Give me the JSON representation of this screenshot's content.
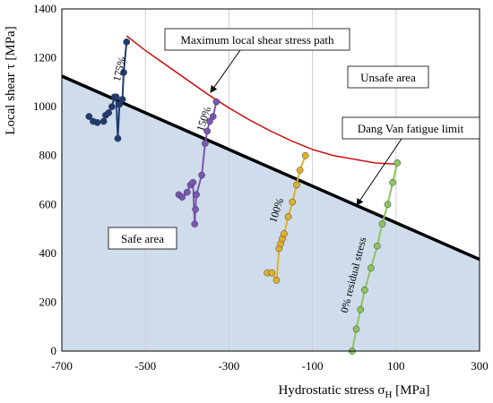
{
  "chart_data": {
    "type": "line",
    "title": "",
    "xlabel": "Hydrostatic stress σ",
    "xlabel_sub": "H",
    "xlabel_unit": " [MPa]",
    "ylabel": "Local shear τ [MPa]",
    "xlim": [
      -700,
      300
    ],
    "ylim": [
      0,
      1400
    ],
    "x_ticks": [
      -700,
      -500,
      -300,
      -100,
      100,
      300
    ],
    "x_tick_labels": [
      "-700",
      "-500",
      "-300",
      "-100",
      "100",
      "300"
    ],
    "y_ticks": [
      0,
      200,
      400,
      600,
      800,
      1000,
      1200,
      1400
    ],
    "y_tick_labels": [
      "0",
      "200",
      "400",
      "600",
      "800",
      "1000",
      "1200",
      "1400"
    ],
    "grid": "vertical",
    "fatigue_limit": {
      "name": "Dang Van fatigue limit",
      "x": [
        -700,
        300
      ],
      "y": [
        1125,
        375
      ],
      "color": "#000000"
    },
    "shear_path": {
      "name": "Maximum local shear stress path",
      "x": [
        -545,
        -500,
        -450,
        -400,
        -350,
        -300,
        -250,
        -200,
        -150,
        -100,
        -50,
        0,
        50,
        100
      ],
      "y": [
        1290,
        1230,
        1170,
        1110,
        1050,
        995,
        945,
        900,
        860,
        825,
        800,
        785,
        770,
        765
      ],
      "color": "#cc0000"
    },
    "series": [
      {
        "name": "175%",
        "color": "#1f3b73",
        "x": [
          -635,
          -625,
          -615,
          -600,
          -595,
          -588,
          -580,
          -574,
          -570,
          -566,
          -562,
          -555,
          -552,
          -545
        ],
        "y": [
          960,
          940,
          935,
          940,
          965,
          975,
          1000,
          1040,
          1040,
          870,
          1010,
          1030,
          1140,
          1265
        ]
      },
      {
        "name": "150%",
        "color": "#7b55b5",
        "x": [
          -420,
          -412,
          -400,
          -392,
          -386,
          -382,
          -380,
          -378,
          -365,
          -357,
          -352,
          -346,
          -338,
          -330
        ],
        "y": [
          640,
          630,
          650,
          680,
          690,
          520,
          580,
          640,
          720,
          850,
          900,
          940,
          960,
          1020
        ]
      },
      {
        "name": "100%",
        "color": "#dfb12a",
        "x": [
          -208,
          -197,
          -186,
          -180,
          -176,
          -172,
          -168,
          -158,
          -148,
          -138,
          -130,
          -117
        ],
        "y": [
          320,
          320,
          290,
          420,
          440,
          460,
          480,
          550,
          610,
          680,
          740,
          800
        ]
      },
      {
        "name": "0% residual stress",
        "color": "#8cc45f",
        "x": [
          -5,
          5,
          15,
          25,
          40,
          55,
          67,
          80,
          92,
          103
        ],
        "y": [
          0,
          90,
          170,
          250,
          340,
          430,
          520,
          600,
          690,
          770
        ]
      }
    ],
    "series_labels": [
      "175%",
      "150%",
      "100%",
      "0% residual stress"
    ],
    "annotations": {
      "unsafe": "Unsafe area",
      "safe": "Safe area",
      "shear_path_label": "Maximum local shear stress path",
      "dang_van_label": "Dang Van fatigue limit"
    },
    "safe_area_color": "#cfdcec"
  }
}
